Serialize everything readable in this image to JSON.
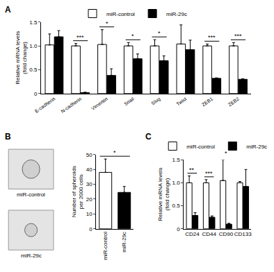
{
  "chart_data": [
    {
      "type": "bar",
      "panel_label": "A",
      "y_label": "Relative mRNA levels\n(fold change)",
      "categories": [
        "E-cadherin",
        "N-cadherin",
        "Vimentin",
        "Snail",
        "Slug",
        "Twist",
        "ZEB1",
        "ZEB2"
      ],
      "series": [
        {
          "name": "miR-control",
          "color": "#ffffff",
          "values": [
            1.02,
            1.0,
            1.03,
            1.0,
            1.0,
            1.04,
            1.0,
            1.0
          ],
          "error": [
            0.23,
            0.05,
            0.31,
            0.07,
            0.13,
            0.4,
            0.04,
            0.07
          ]
        },
        {
          "name": "miR-29c",
          "color": "#000000",
          "values": [
            1.19,
            0.02,
            0.38,
            0.73,
            0.69,
            0.92,
            0.32,
            0.3
          ],
          "error": [
            0.13,
            0.01,
            0.14,
            0.1,
            0.1,
            0.2,
            0.01,
            0.01
          ]
        }
      ],
      "ylim": [
        0,
        1.5
      ],
      "yticks": [
        0,
        0.5,
        {
          "value": 1,
          "label": "1.0"
        },
        1.5
      ],
      "grid": false,
      "legend": "top",
      "annotations": [
        {
          "x": "N-cadherin",
          "text": "***"
        },
        {
          "x": "Vimentin",
          "text": "*"
        },
        {
          "x": "Snail",
          "text": "*"
        },
        {
          "x": "Slug",
          "text": "*"
        },
        {
          "x": "ZEB1",
          "text": "***"
        },
        {
          "x": "ZEB2",
          "text": "***"
        }
      ]
    },
    {
      "type": "bar",
      "panel_label": "B",
      "images": [
        "miR-control",
        "miR-29c"
      ],
      "y_label": "Number of spheroids\nper 2000 cells",
      "categories": [
        "miR-control",
        "miR-29c"
      ],
      "values": [
        38,
        24.5
      ],
      "error": [
        9,
        4
      ],
      "colors": [
        "#ffffff",
        "#000000"
      ],
      "ylim": [
        0,
        50
      ],
      "yticks": [
        0,
        10,
        20,
        30,
        40,
        50
      ],
      "grid": false,
      "annotations": [
        {
          "between": [
            "miR-control",
            "miR-29c"
          ],
          "text": "*"
        }
      ]
    },
    {
      "type": "bar",
      "panel_label": "C",
      "y_label": "Relative mRNA levels\n(fold change)",
      "categories": [
        "CD24",
        "CD44",
        "CD90",
        "CD133"
      ],
      "series": [
        {
          "name": "miR-control",
          "color": "#ffffff",
          "values": [
            1.0,
            1.0,
            1.05,
            1.0
          ],
          "error": [
            0.15,
            0.07,
            0.45,
            0.03
          ]
        },
        {
          "name": "miR-29c",
          "color": "#000000",
          "values": [
            0.29,
            0.25,
            0.1,
            0.92
          ],
          "error": [
            0.06,
            0.03,
            0.02,
            0.37
          ]
        }
      ],
      "ylim": [
        0,
        1.5
      ],
      "yticks": [
        0,
        0.5,
        {
          "value": 1,
          "label": "1.0"
        },
        1.5
      ],
      "grid": false,
      "legend": "top",
      "annotations": [
        {
          "x": "CD24",
          "text": "**"
        },
        {
          "x": "CD44",
          "text": "***"
        },
        {
          "x": "CD90",
          "text": "*"
        }
      ]
    }
  ]
}
